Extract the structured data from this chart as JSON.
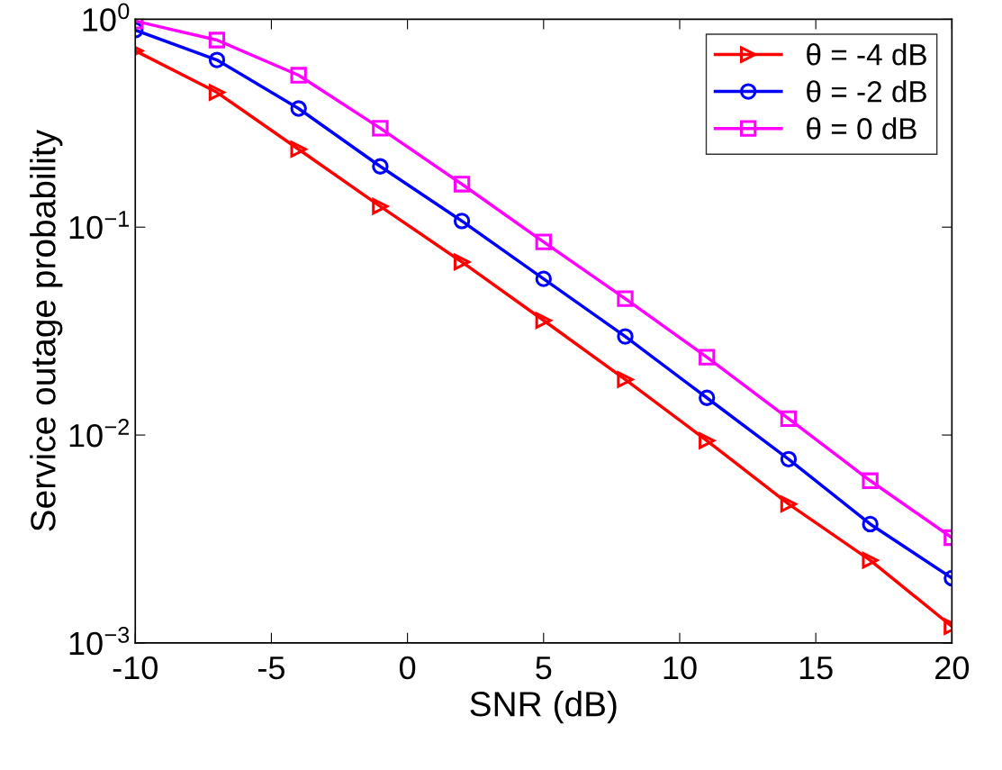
{
  "chart_data": {
    "type": "line",
    "xlabel": "SNR (dB)",
    "ylabel": "Service outage probability",
    "x": [
      -10,
      -7,
      -4,
      -1,
      2,
      5,
      8,
      11,
      14,
      17,
      20
    ],
    "series": [
      {
        "name": "θ = -4 dB",
        "color": "#ff0000",
        "marker": "triangle",
        "values": [
          0.705,
          0.445,
          0.237,
          0.126,
          0.068,
          0.0356,
          0.0185,
          0.0094,
          0.00466,
          0.0025,
          0.0012
        ]
      },
      {
        "name": "θ = -2 dB",
        "color": "#0000ff",
        "marker": "circle",
        "values": [
          0.887,
          0.637,
          0.372,
          0.196,
          0.107,
          0.0564,
          0.0298,
          0.0151,
          0.00766,
          0.00373,
          0.00205
        ]
      },
      {
        "name": "θ = 0 dB",
        "color": "#ff00ff",
        "marker": "square",
        "values": [
          0.98,
          0.794,
          0.538,
          0.299,
          0.161,
          0.0849,
          0.0453,
          0.0237,
          0.012,
          0.00603,
          0.00321
        ]
      }
    ],
    "log": "y",
    "xlim": [
      -10,
      20
    ],
    "xticks": [
      -10,
      -5,
      0,
      5,
      10,
      15,
      20
    ],
    "ylim": [
      0.001,
      1
    ],
    "yticks": [
      {
        "value": 0.001,
        "label": "10$^{−3}$"
      },
      {
        "value": 0.01,
        "label": "10$^{−2}$"
      },
      {
        "value": 0.1,
        "label": "10$^{−1}$"
      },
      {
        "value": 1,
        "label": "10$^{0}$"
      }
    ],
    "grid": false,
    "legend": "top right",
    "line_style": "solid"
  }
}
